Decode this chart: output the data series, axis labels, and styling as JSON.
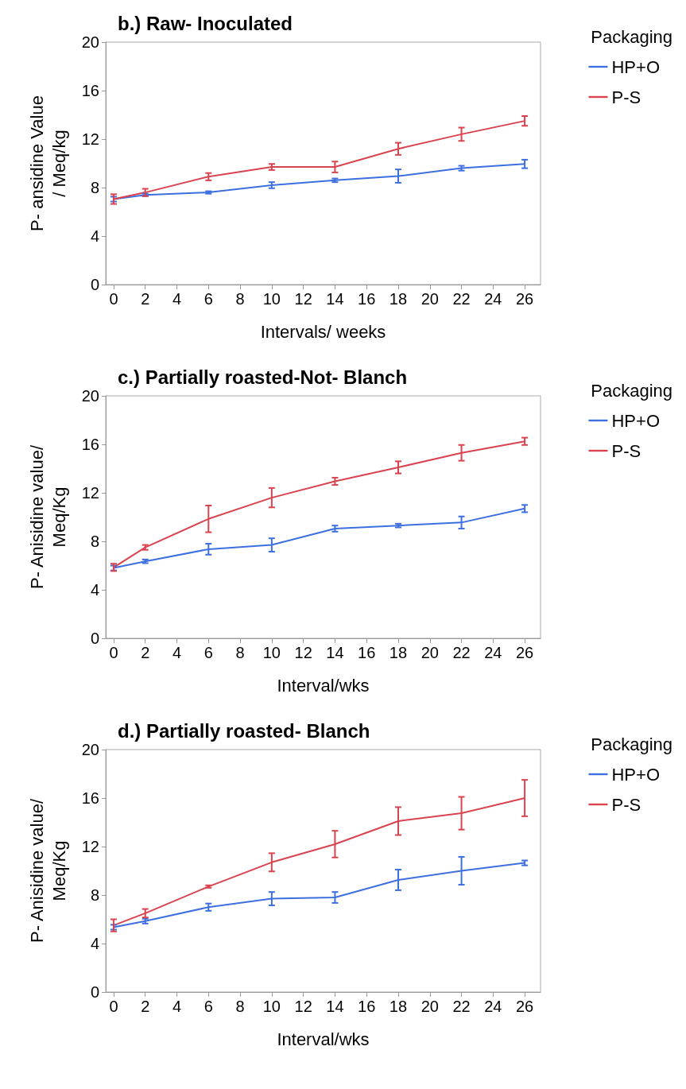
{
  "chart_data": [
    {
      "type": "line",
      "title": "b.) Raw- Inoculated",
      "xlabel": "Intervals/ weeks",
      "ylabel": "P- ansidine Value\n/ Meq/kg",
      "legend_title": "Packaging",
      "legend": "right",
      "marker": "none",
      "grid": false,
      "line_style": "solid",
      "x": [
        0,
        2,
        6,
        10,
        14,
        18,
        22,
        26
      ],
      "xlim": [
        -0.5,
        27
      ],
      "xticks": [
        0,
        2,
        4,
        6,
        8,
        10,
        12,
        14,
        16,
        18,
        20,
        22,
        24,
        26
      ],
      "ylim": [
        0,
        20
      ],
      "yticks": [
        0,
        4,
        8,
        12,
        16,
        20
      ],
      "series": [
        {
          "name": "HP+O",
          "color": "#3d6fe0",
          "values": [
            7.05,
            7.4,
            7.6,
            8.2,
            8.6,
            8.95,
            9.6,
            9.95
          ],
          "errors": [
            0.2,
            0.1,
            0.1,
            0.25,
            0.15,
            0.55,
            0.2,
            0.35
          ]
        },
        {
          "name": "P-S",
          "color": "#d9434f",
          "values": [
            7.05,
            7.6,
            8.9,
            9.7,
            9.7,
            11.2,
            12.4,
            13.5
          ],
          "errors": [
            0.4,
            0.3,
            0.3,
            0.25,
            0.45,
            0.5,
            0.55,
            0.4
          ]
        }
      ]
    },
    {
      "type": "line",
      "title": "c.) Partially roasted-Not- Blanch",
      "xlabel": "Interval/wks",
      "ylabel": "P- Anisidine value/\nMeq/Kg",
      "legend_title": "Packaging",
      "legend": "right",
      "marker": "none",
      "grid": false,
      "line_style": "solid",
      "x": [
        0,
        2,
        6,
        10,
        14,
        18,
        22,
        26
      ],
      "xlim": [
        -0.5,
        27
      ],
      "xticks": [
        0,
        2,
        4,
        6,
        8,
        10,
        12,
        14,
        16,
        18,
        20,
        22,
        24,
        26
      ],
      "ylim": [
        0,
        20
      ],
      "yticks": [
        0,
        4,
        8,
        12,
        16,
        20
      ],
      "series": [
        {
          "name": "HP+O",
          "color": "#3d6fe0",
          "values": [
            5.8,
            6.35,
            7.35,
            7.7,
            9.05,
            9.3,
            9.55,
            10.7
          ],
          "errors": [
            0.2,
            0.15,
            0.45,
            0.55,
            0.25,
            0.15,
            0.5,
            0.3
          ]
        },
        {
          "name": "P-S",
          "color": "#d9434f",
          "values": [
            5.85,
            7.5,
            9.85,
            11.6,
            12.95,
            14.1,
            15.3,
            16.25
          ],
          "errors": [
            0.3,
            0.2,
            1.1,
            0.8,
            0.3,
            0.5,
            0.65,
            0.3
          ]
        }
      ]
    },
    {
      "type": "line",
      "title": "d.) Partially roasted- Blanch",
      "xlabel": "Interval/wks",
      "ylabel": "P- Anisidine value/\nMeq/Kg",
      "legend_title": "Packaging",
      "legend": "right",
      "marker": "none",
      "grid": false,
      "line_style": "solid",
      "x": [
        0,
        2,
        6,
        10,
        14,
        18,
        22,
        26
      ],
      "xlim": [
        -0.5,
        27
      ],
      "xticks": [
        0,
        2,
        4,
        6,
        8,
        10,
        12,
        14,
        16,
        18,
        20,
        22,
        24,
        26
      ],
      "ylim": [
        0,
        20
      ],
      "yticks": [
        0,
        4,
        8,
        12,
        16,
        20
      ],
      "series": [
        {
          "name": "HP+O",
          "color": "#3d6fe0",
          "values": [
            5.35,
            5.85,
            7.0,
            7.7,
            7.8,
            9.25,
            10.0,
            10.65
          ],
          "errors": [
            0.2,
            0.2,
            0.3,
            0.55,
            0.45,
            0.85,
            1.15,
            0.2
          ]
        },
        {
          "name": "P-S",
          "color": "#d9434f",
          "values": [
            5.5,
            6.5,
            8.7,
            10.7,
            12.2,
            14.1,
            14.75,
            16.0
          ],
          "errors": [
            0.5,
            0.35,
            0.1,
            0.75,
            1.1,
            1.15,
            1.35,
            1.5
          ]
        }
      ]
    }
  ]
}
